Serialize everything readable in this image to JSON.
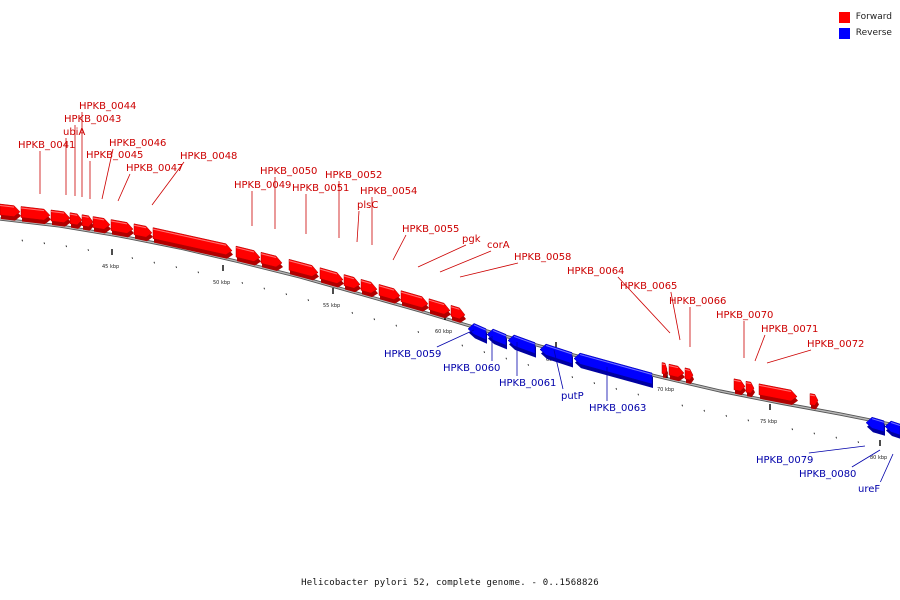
{
  "legend": [
    {
      "label": "Forward",
      "color": "#ff0000"
    },
    {
      "label": "Reverse",
      "color": "#0000ff"
    }
  ],
  "caption": "Helicobacter pylori 52, complete genome. - 0..1568826",
  "colors": {
    "forward": "#ff0000",
    "forward_dark": "#b00000",
    "reverse": "#0000ff",
    "reverse_dark": "#0000a0",
    "backbone": "#888888",
    "forward_label": "#cc0000",
    "reverse_label": "#0000aa"
  },
  "tick_labels": [
    "45 kbp",
    "50 kbp",
    "55 kbp",
    "60 kbp",
    "65 kbp",
    "70 kbp",
    "75 kbp",
    "80 kbp"
  ],
  "forward_genes": [
    "HPKB_0041",
    "ubiA",
    "HPKB_0043",
    "HPKB_0044",
    "HPKB_0045",
    "HPKB_0046",
    "HPKB_0047",
    "HPKB_0048",
    "HPKB_0049",
    "HPKB_0050",
    "HPKB_0051",
    "HPKB_0052",
    "plsC",
    "HPKB_0054",
    "HPKB_0055",
    "pgk",
    "corA",
    "HPKB_0058",
    "HPKB_0064",
    "HPKB_0065",
    "HPKB_0066",
    "HPKB_0070",
    "HPKB_0071",
    "HPKB_0072"
  ],
  "reverse_genes": [
    "HPKB_0059",
    "HPKB_0060",
    "HPKB_0061",
    "putP",
    "HPKB_0063",
    "HPKB_0079",
    "HPKB_0080",
    "ureF"
  ]
}
